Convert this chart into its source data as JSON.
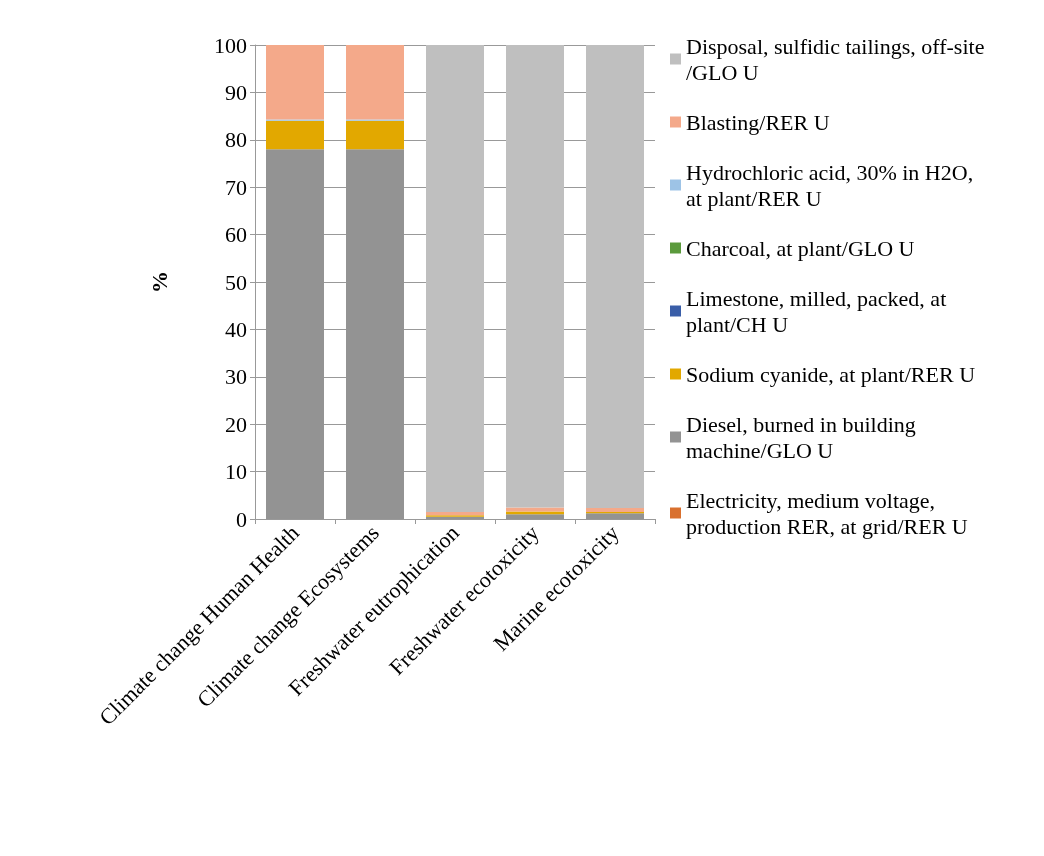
{
  "chart_data": {
    "type": "bar",
    "stacked": true,
    "ylabel": "%",
    "categories": [
      "Climate change Human Health",
      "Climate change Ecosystems",
      "Freshwater eutrophication",
      "Freshwater ecotoxicity",
      "Marine ecotoxicity"
    ],
    "series": [
      {
        "name": "Electricity, medium voltage, production RER, at grid/RER U",
        "color": "#d9702e",
        "values": [
          0,
          0,
          0,
          0,
          0
        ]
      },
      {
        "name": "Diesel, burned in building machine/GLO U",
        "color": "#939393",
        "values": [
          78,
          78,
          0.5,
          1,
          1.2
        ]
      },
      {
        "name": "Sodium cyanide, at plant/RER U",
        "color": "#e2a800",
        "values": [
          6,
          6,
          0.3,
          0.6,
          0.3
        ]
      },
      {
        "name": "Limestone, milled, packed, at plant/CH U",
        "color": "#3a5ea8",
        "values": [
          0,
          0,
          0,
          0,
          0
        ]
      },
      {
        "name": "Charcoal, at plant/GLO U",
        "color": "#5b9a3c",
        "values": [
          0,
          0,
          0,
          0,
          0
        ]
      },
      {
        "name": "Hydrochloric acid, 30% in H2O, at plant/RER U",
        "color": "#9dc3e6",
        "values": [
          0.3,
          0.3,
          0,
          0,
          0
        ]
      },
      {
        "name": "Blasting/RER U",
        "color": "#f4a98a",
        "values": [
          15.7,
          15.7,
          0.7,
          0.8,
          0.8
        ]
      },
      {
        "name": "Disposal, sulfidic tailings, off-site/GLO U",
        "color": "#bfbfbf",
        "values": [
          0,
          0,
          98.5,
          97.6,
          97.7
        ]
      }
    ],
    "ylim": [
      0,
      100
    ],
    "yticks": [
      0,
      10,
      20,
      30,
      40,
      50,
      60,
      70,
      80,
      90,
      100
    ],
    "grid": "y",
    "legend": "right"
  }
}
